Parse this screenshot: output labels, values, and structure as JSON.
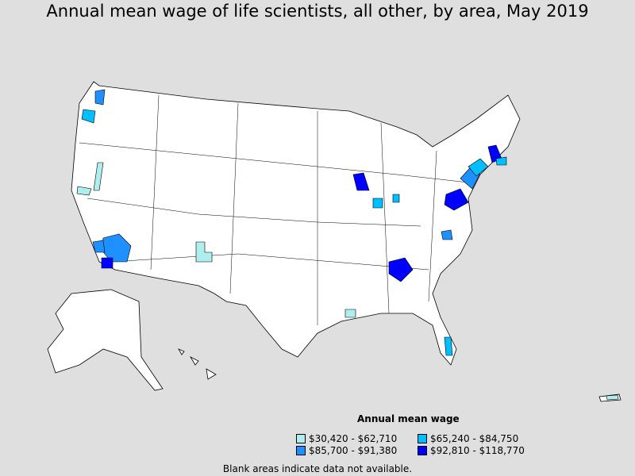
{
  "title": "Annual mean wage of life scientists, all other, by area, May 2019",
  "legend": {
    "title": "Annual mean wage",
    "items": [
      {
        "label": "$30,420 - $62,710",
        "color": "#afeeee"
      },
      {
        "label": "$65,240 - $84,750",
        "color": "#00bfff"
      },
      {
        "label": "$85,700 - $91,380",
        "color": "#1e90ff"
      },
      {
        "label": "$92,810 - $118,770",
        "color": "#0000ff"
      }
    ]
  },
  "note": "Blank areas indicate data not available."
}
